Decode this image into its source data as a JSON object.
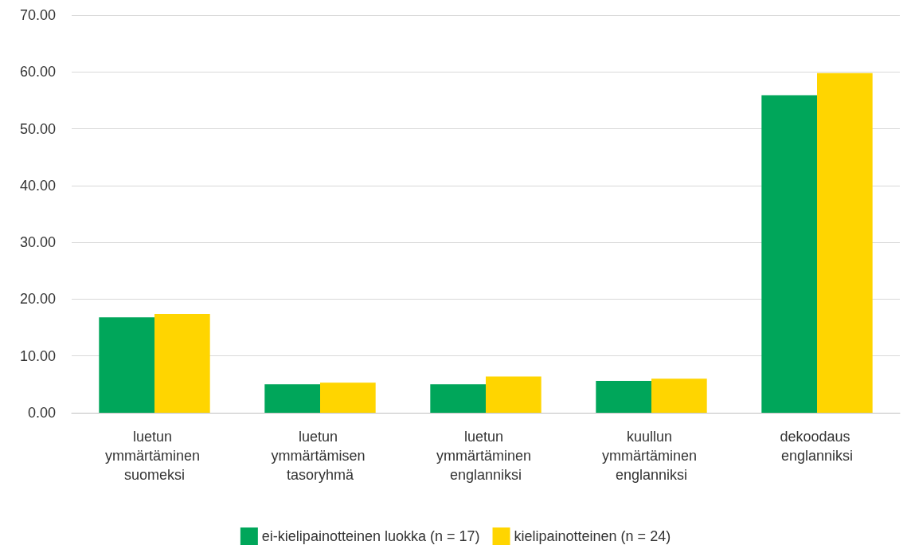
{
  "chart_data": {
    "type": "bar",
    "categories": [
      "luetun ymmärtäminen suomeksi",
      "luetun ymmärtämisen tasoryhmä",
      "luetun ymmärtäminen englanniksi",
      "kuullun ymmärtäminen englanniksi",
      "dekoodaus englanniksi"
    ],
    "series": [
      {
        "name": "ei-kielipainotteinen luokka (n = 17)",
        "color": "#00a65a",
        "values": [
          16.8,
          5.0,
          5.0,
          5.6,
          55.9
        ]
      },
      {
        "name": "kielipainotteinen (n = 24)",
        "color": "#ffd500",
        "values": [
          17.4,
          5.3,
          6.4,
          6.0,
          59.8
        ]
      }
    ],
    "ylim": [
      0,
      70
    ],
    "yticks": [
      {
        "value": 0,
        "label": "0.00"
      },
      {
        "value": 10,
        "label": "10.00"
      },
      {
        "value": 20,
        "label": "20.00"
      },
      {
        "value": 30,
        "label": "30.00"
      },
      {
        "value": 40,
        "label": "40.00"
      },
      {
        "value": 50,
        "label": "50.00"
      },
      {
        "value": 60,
        "label": "60.00"
      },
      {
        "value": 70,
        "label": "70.00"
      }
    ],
    "grid": "y",
    "legend": "bottom"
  }
}
